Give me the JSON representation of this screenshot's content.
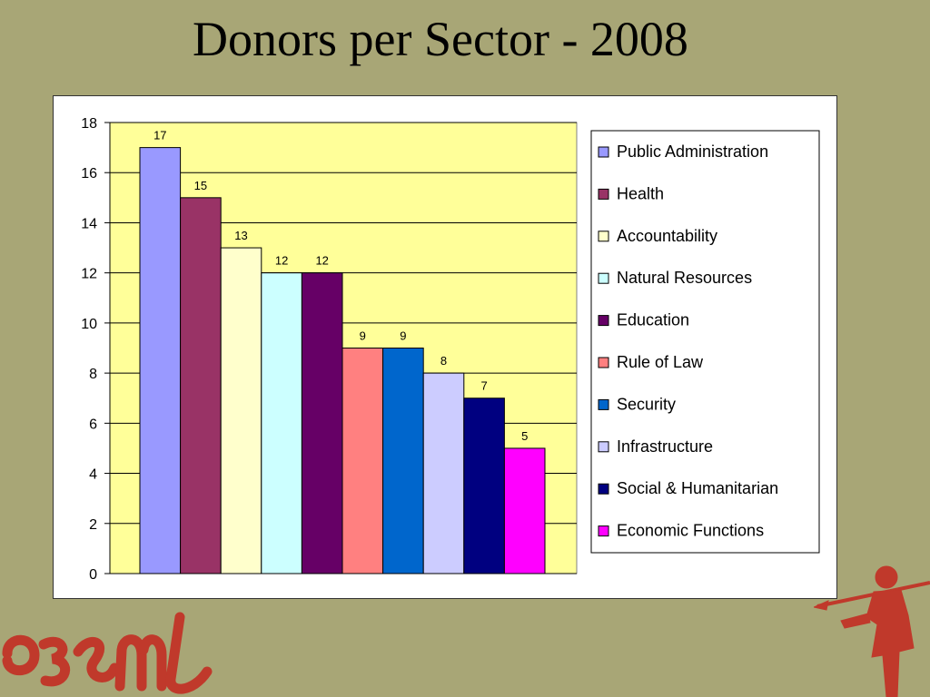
{
  "slide": {
    "title": "Donors per Sector - 2008"
  },
  "chart_data": {
    "type": "bar",
    "title": "",
    "xlabel": "",
    "ylabel": "",
    "ylim": [
      0,
      18
    ],
    "yticks": [
      0,
      2,
      4,
      6,
      8,
      10,
      12,
      14,
      16,
      18
    ],
    "grid": true,
    "legend_position": "right",
    "plot_background": "#ffff99",
    "categories": [
      "Public Administration",
      "Health",
      "Accountability",
      "Natural Resources",
      "Education",
      "Rule of Law",
      "Security",
      "Infrastructure",
      "Social & Humanitarian",
      "Economic Functions"
    ],
    "values": [
      17,
      15,
      13,
      12,
      12,
      9,
      9,
      8,
      7,
      5
    ],
    "colors": [
      "#9999ff",
      "#993366",
      "#ffffcc",
      "#ccffff",
      "#660066",
      "#ff8080",
      "#0066cc",
      "#ccccff",
      "#000080",
      "#ff00ff"
    ]
  },
  "decor": {
    "brand_color": "#c0392b",
    "logo_icon": "georgian-script-logo",
    "mascot_icon": "warrior-with-spear-icon"
  }
}
